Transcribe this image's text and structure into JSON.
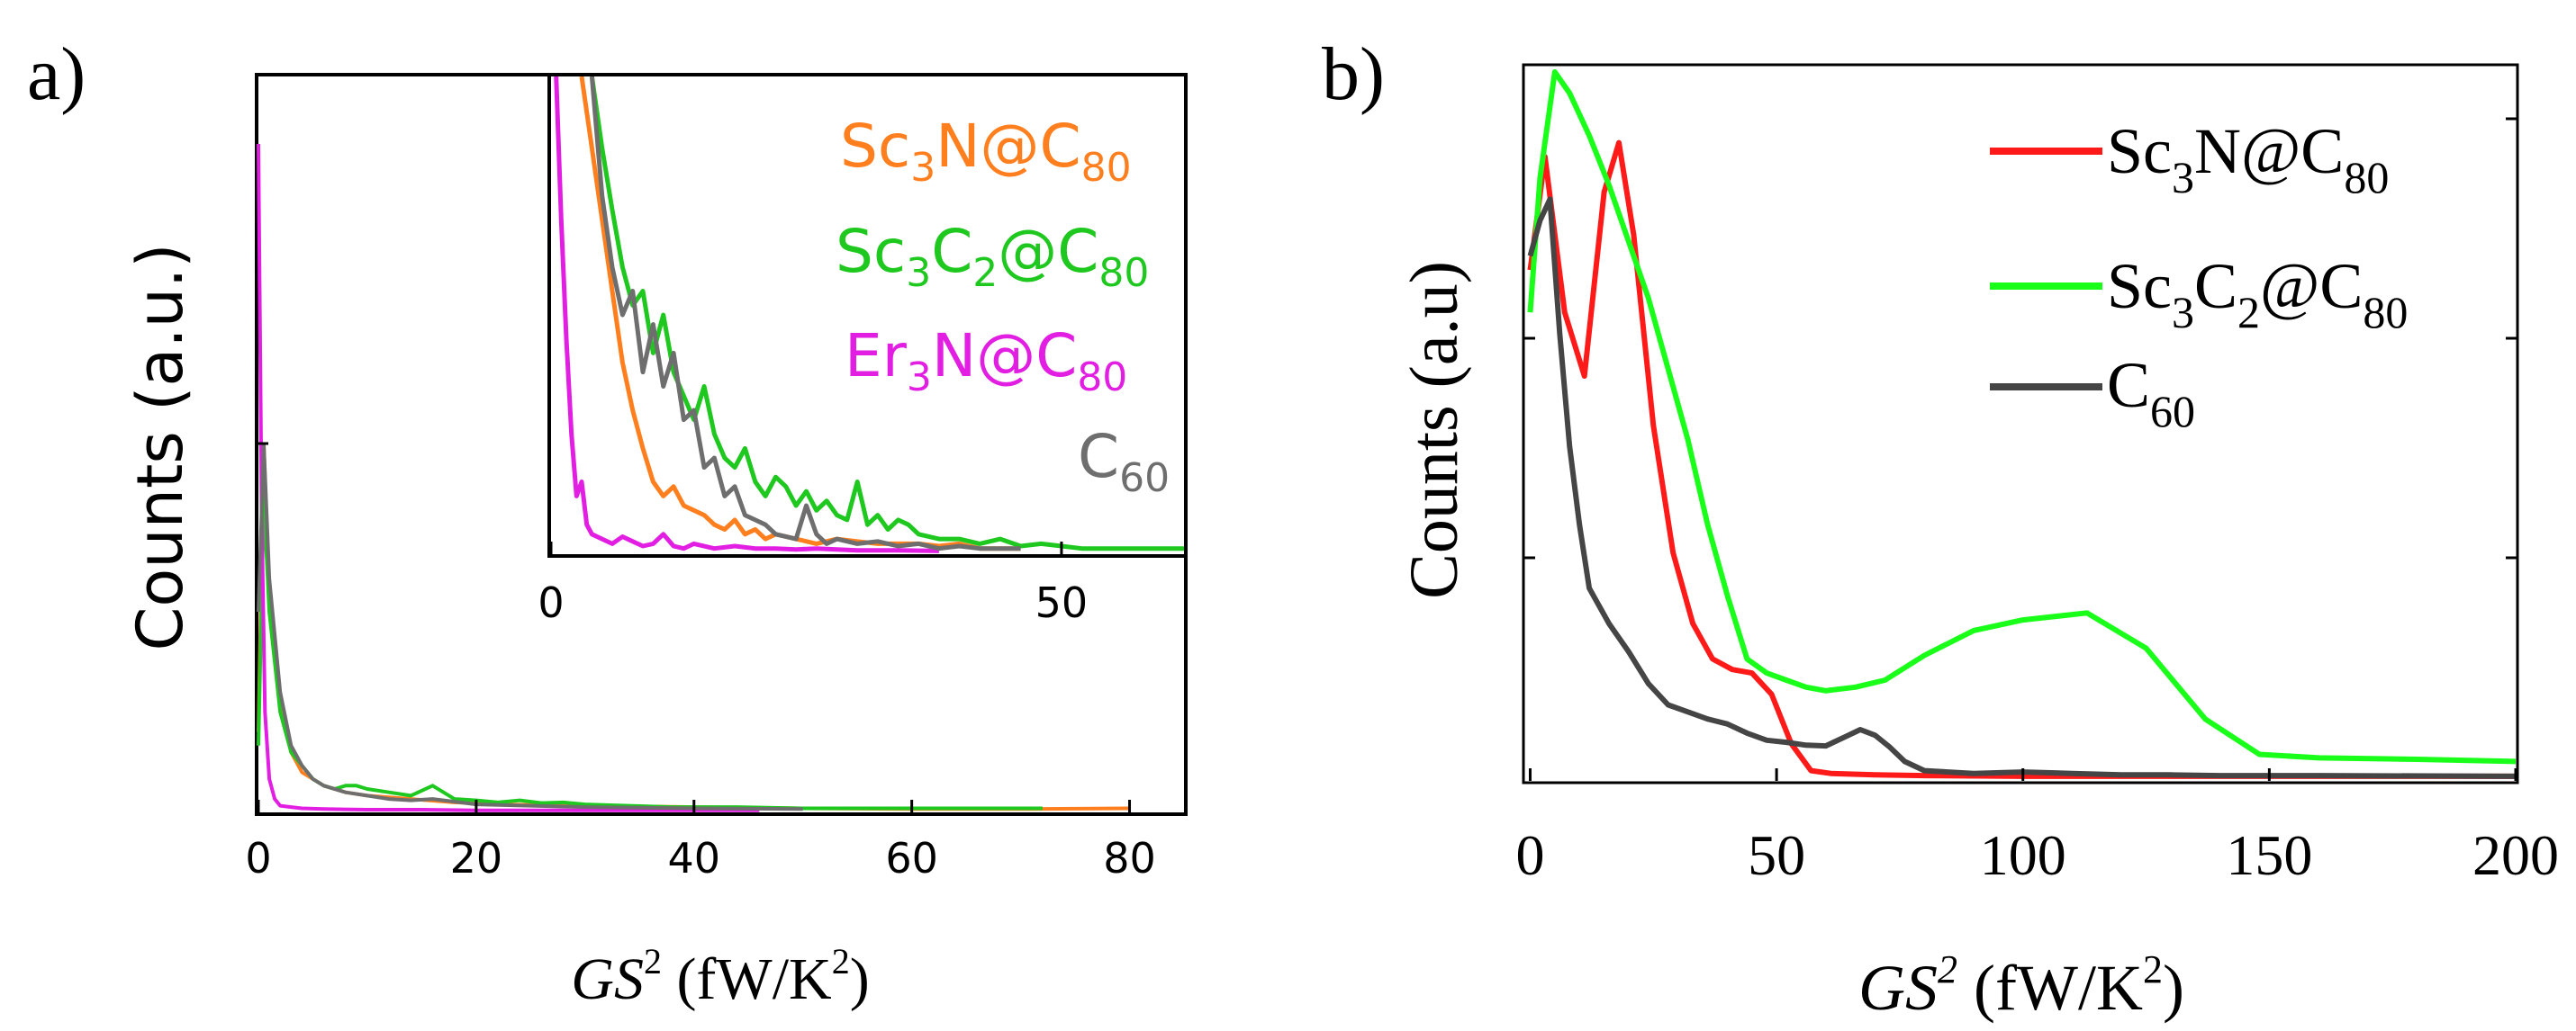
{
  "panels": {
    "a": {
      "label": "a)"
    },
    "b": {
      "label": "b)"
    }
  },
  "colors": {
    "sc3n": "#ff7f1e",
    "sc3c2": "#1ec81e",
    "er3n": "#e21ee2",
    "c60": "#6e6e6e",
    "b_sc3n": "#ff1a1a",
    "b_sc3c2": "#1aff1a",
    "b_c60": "#454545"
  },
  "chart_data": [
    {
      "id": "a-main",
      "type": "line",
      "xlabel": {
        "italic": "GS",
        "sup": "2",
        "unit_pre": " (fW/K",
        "unit_sup": "2",
        "unit_post": ")"
      },
      "ylabel": "Counts (a.u.)",
      "xlim": [
        0,
        85
      ],
      "ylim": [
        0,
        1
      ],
      "xticks": [
        0,
        20,
        40,
        60,
        80
      ],
      "xtick_labels": [
        "0",
        "20",
        "40",
        "60",
        "80"
      ],
      "series": [
        {
          "name": "Sc3N@C80",
          "color_key": "sc3n",
          "x": [
            0,
            0.5,
            1,
            2,
            3,
            4,
            6,
            8,
            10,
            14,
            18,
            22,
            30,
            40,
            50,
            60,
            70,
            80
          ],
          "y": [
            0.12,
            0.55,
            0.32,
            0.17,
            0.09,
            0.06,
            0.04,
            0.03,
            0.025,
            0.02,
            0.015,
            0.012,
            0.01,
            0.008,
            0.006,
            0.005,
            0.005,
            0.006
          ]
        },
        {
          "name": "Sc3C2@C80",
          "color_key": "sc3c2",
          "x": [
            0,
            0.5,
            1,
            2,
            3,
            4,
            5,
            6,
            7,
            8,
            9,
            10,
            12,
            14,
            16,
            18,
            20,
            22,
            24,
            26,
            28,
            30,
            34,
            38,
            44,
            50,
            60,
            72
          ],
          "y": [
            0.1,
            0.47,
            0.3,
            0.15,
            0.09,
            0.07,
            0.05,
            0.04,
            0.035,
            0.04,
            0.04,
            0.035,
            0.03,
            0.025,
            0.04,
            0.02,
            0.018,
            0.015,
            0.018,
            0.014,
            0.015,
            0.012,
            0.01,
            0.008,
            0.008,
            0.006,
            0.006,
            0.006
          ]
        },
        {
          "name": "Er3N@C80",
          "color_key": "er3n",
          "x": [
            0,
            0.3,
            0.6,
            1,
            1.5,
            2,
            3,
            4,
            6,
            10,
            15,
            20,
            30,
            40,
            46
          ],
          "y": [
            1.0,
            0.45,
            0.15,
            0.05,
            0.02,
            0.01,
            0.008,
            0.006,
            0.005,
            0.004,
            0.004,
            0.003,
            0.003,
            0.003,
            0.003
          ]
        },
        {
          "name": "C60",
          "color_key": "c60",
          "x": [
            0,
            0.5,
            1,
            2,
            3,
            4,
            5,
            6,
            8,
            10,
            12,
            14,
            16,
            20,
            25,
            30,
            40,
            50
          ],
          "y": [
            0.3,
            0.55,
            0.35,
            0.18,
            0.1,
            0.07,
            0.05,
            0.04,
            0.03,
            0.025,
            0.02,
            0.018,
            0.02,
            0.012,
            0.01,
            0.008,
            0.006,
            0.005
          ]
        }
      ]
    },
    {
      "id": "a-inset",
      "type": "line",
      "xlim": [
        0,
        62
      ],
      "ylim": [
        0,
        1
      ],
      "xticks": [
        0,
        50
      ],
      "xtick_labels": [
        "0",
        "50"
      ],
      "legend": [
        {
          "base": "Sc",
          "sub1": "3",
          "mid": "N@C",
          "sub2": "80",
          "color_key": "sc3n"
        },
        {
          "base": "Sc",
          "sub1": "3",
          "mid": "C",
          "sub2": "2",
          "tail": "@C",
          "sub3": "80",
          "color_key": "sc3c2"
        },
        {
          "base": "Er",
          "sub1": "3",
          "mid": "N@C",
          "sub2": "80",
          "color_key": "er3n"
        },
        {
          "base": "C",
          "sub1": "60",
          "color_key": "c60"
        }
      ],
      "series": [
        {
          "name": "Sc3N@C80",
          "color_key": "sc3n",
          "x": [
            3,
            4,
            5,
            6,
            7,
            8,
            9,
            10,
            11,
            12,
            13,
            14,
            15,
            16,
            17,
            18,
            19,
            20,
            21,
            22,
            24,
            26,
            28,
            30,
            32,
            34,
            36,
            38,
            40,
            42,
            44,
            46
          ],
          "y": [
            1.0,
            0.85,
            0.7,
            0.55,
            0.4,
            0.3,
            0.22,
            0.15,
            0.12,
            0.14,
            0.1,
            0.09,
            0.08,
            0.06,
            0.05,
            0.07,
            0.04,
            0.05,
            0.03,
            0.04,
            0.03,
            0.02,
            0.03,
            0.025,
            0.02,
            0.02,
            0.02,
            0.015,
            0.02,
            0.01,
            0.01,
            0.01
          ]
        },
        {
          "name": "Sc3C2@C80",
          "color_key": "sc3c2",
          "x": [
            4,
            5,
            6,
            7,
            8,
            9,
            10,
            11,
            12,
            13,
            14,
            15,
            16,
            17,
            18,
            19,
            20,
            21,
            22,
            23,
            24,
            25,
            26,
            27,
            28,
            29,
            30,
            31,
            32,
            33,
            34,
            35,
            36,
            38,
            40,
            42,
            44,
            46,
            48,
            50,
            52,
            55,
            62
          ],
          "y": [
            1.0,
            0.85,
            0.72,
            0.6,
            0.52,
            0.55,
            0.42,
            0.5,
            0.38,
            0.33,
            0.28,
            0.35,
            0.25,
            0.2,
            0.18,
            0.22,
            0.15,
            0.12,
            0.16,
            0.14,
            0.1,
            0.13,
            0.09,
            0.11,
            0.08,
            0.07,
            0.15,
            0.06,
            0.08,
            0.05,
            0.07,
            0.06,
            0.04,
            0.03,
            0.03,
            0.02,
            0.03,
            0.015,
            0.02,
            0.015,
            0.01,
            0.01,
            0.01
          ]
        },
        {
          "name": "Er3N@C80",
          "color_key": "er3n",
          "x": [
            0.5,
            1,
            1.5,
            2,
            2.5,
            3,
            3.5,
            4,
            5,
            6,
            7,
            8,
            9,
            10,
            11,
            12,
            13,
            14,
            16,
            18,
            20,
            22,
            24,
            26,
            28,
            30,
            34,
            38
          ],
          "y": [
            1.0,
            0.7,
            0.45,
            0.25,
            0.12,
            0.15,
            0.06,
            0.04,
            0.03,
            0.02,
            0.035,
            0.025,
            0.015,
            0.02,
            0.04,
            0.015,
            0.01,
            0.02,
            0.01,
            0.015,
            0.01,
            0.01,
            0.008,
            0.01,
            0.008,
            0.006,
            0.006,
            0.005
          ]
        },
        {
          "name": "C60",
          "color_key": "c60",
          "x": [
            4,
            5,
            6,
            7,
            8,
            9,
            10,
            11,
            12,
            13,
            14,
            15,
            16,
            17,
            18,
            19,
            20,
            21,
            22,
            24,
            25,
            26,
            27,
            28,
            30,
            32,
            34,
            36,
            38,
            40,
            42,
            44,
            46
          ],
          "y": [
            1.0,
            0.75,
            0.6,
            0.5,
            0.55,
            0.38,
            0.48,
            0.35,
            0.42,
            0.28,
            0.3,
            0.18,
            0.2,
            0.12,
            0.14,
            0.08,
            0.07,
            0.06,
            0.04,
            0.03,
            0.1,
            0.04,
            0.02,
            0.03,
            0.02,
            0.025,
            0.015,
            0.02,
            0.01,
            0.015,
            0.01,
            0.01,
            0.01
          ]
        }
      ]
    },
    {
      "id": "b-main",
      "type": "line",
      "xlabel": {
        "italic": "GS",
        "sup": "2",
        "unit_pre": " (fW/K",
        "unit_sup": "2",
        "unit_post": ")"
      },
      "ylabel": "Counts (a.u)",
      "xlim": [
        -1,
        200
      ],
      "ylim": [
        0,
        1
      ],
      "xticks": [
        0,
        50,
        100,
        150,
        200
      ],
      "xtick_labels": [
        "0",
        "50",
        "100",
        "150",
        "200"
      ],
      "legend": [
        {
          "base": "Sc",
          "sub1": "3",
          "mid": "N@C",
          "sub2": "80",
          "color_key": "b_sc3n"
        },
        {
          "base": "Sc",
          "sub1": "3",
          "mid": "C",
          "sub2": "2",
          "tail": "@C",
          "sub3": "80",
          "color_key": "b_sc3c2"
        },
        {
          "base": "C",
          "sub1": "60",
          "color_key": "b_c60"
        }
      ],
      "series": [
        {
          "name": "Sc3N@C80",
          "color_key": "b_sc3n",
          "x": [
            0,
            3,
            7,
            11,
            15,
            18,
            21,
            25,
            29,
            33,
            37,
            41,
            45,
            49,
            53,
            57,
            61,
            70,
            80,
            100,
            150,
            200
          ],
          "y": [
            0.72,
            0.88,
            0.66,
            0.57,
            0.83,
            0.9,
            0.77,
            0.5,
            0.32,
            0.22,
            0.17,
            0.155,
            0.15,
            0.12,
            0.05,
            0.012,
            0.008,
            0.006,
            0.005,
            0.004,
            0.004,
            0.004
          ]
        },
        {
          "name": "Sc3C2@C80",
          "color_key": "b_sc3c2",
          "x": [
            0,
            2,
            5,
            8,
            12,
            16,
            20,
            24,
            28,
            32,
            36,
            40,
            44,
            48,
            52,
            56,
            60,
            66,
            72,
            80,
            90,
            100,
            113,
            125,
            137,
            148,
            160,
            180,
            200
          ],
          "y": [
            0.66,
            0.85,
            1.0,
            0.97,
            0.91,
            0.84,
            0.76,
            0.68,
            0.58,
            0.48,
            0.36,
            0.26,
            0.17,
            0.15,
            0.14,
            0.13,
            0.125,
            0.13,
            0.14,
            0.175,
            0.21,
            0.225,
            0.235,
            0.185,
            0.085,
            0.035,
            0.03,
            0.028,
            0.025
          ]
        },
        {
          "name": "C60",
          "color_key": "b_c60",
          "x": [
            0,
            2,
            4,
            6,
            8,
            10,
            12,
            16,
            20,
            24,
            28,
            32,
            36,
            40,
            44,
            48,
            52,
            56,
            60,
            64,
            67,
            70,
            73,
            76,
            80,
            90,
            100,
            110,
            120,
            130,
            140,
            160,
            200
          ],
          "y": [
            0.74,
            0.79,
            0.82,
            0.63,
            0.47,
            0.36,
            0.27,
            0.22,
            0.18,
            0.135,
            0.105,
            0.095,
            0.085,
            0.078,
            0.065,
            0.055,
            0.052,
            0.048,
            0.047,
            0.06,
            0.07,
            0.062,
            0.045,
            0.025,
            0.012,
            0.008,
            0.01,
            0.008,
            0.006,
            0.006,
            0.005,
            0.005,
            0.004
          ]
        }
      ]
    }
  ]
}
